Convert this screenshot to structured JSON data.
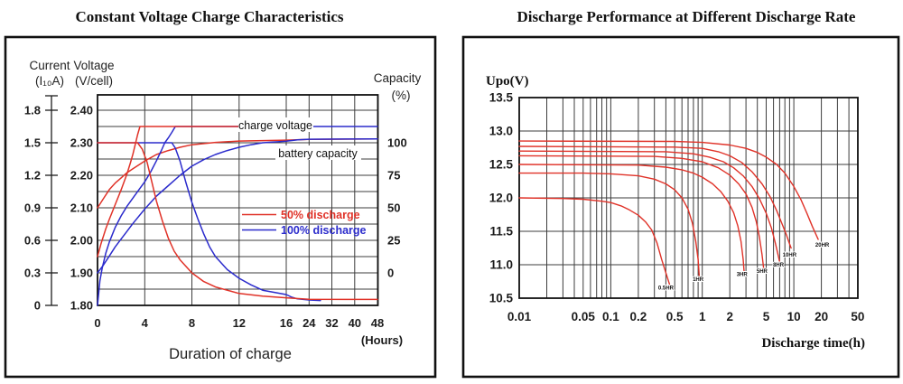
{
  "colors": {
    "red": "#e03228",
    "blue": "#2b2bcc",
    "grid": "#3c3c3c",
    "border": "#111111",
    "text": "#1c1c1c"
  },
  "chart_data": [
    {
      "id": "charge-characteristics",
      "type": "line",
      "title": "Constant Voltage Charge Characteristics",
      "x_axis": {
        "title": "Duration of charge",
        "unit": "(Hours)",
        "ticks": [
          "0",
          "4",
          "8",
          "12",
          "16",
          "24",
          "32",
          "40",
          "48"
        ],
        "tick_values": [
          0,
          4,
          8,
          12,
          16,
          24,
          32,
          40,
          48
        ],
        "note": "piecewise linear axis: 0-16 h wide spacing, 16-48 h compressed"
      },
      "y_axes": {
        "current": {
          "label_line1": "Current",
          "label_line2": "(I₁₀A)",
          "ticks": [
            "1.8",
            "1.5",
            "1.2",
            "0.9",
            "0.6",
            "0.3",
            "0"
          ],
          "tick_values": [
            1.8,
            1.5,
            1.2,
            0.9,
            0.6,
            0.3,
            0
          ]
        },
        "voltage": {
          "label_line1": "Voltage",
          "label_line2": "(V/cell)",
          "ticks": [
            "2.40",
            "2.30",
            "2.20",
            "2.10",
            "2.00",
            "1.90",
            "1.80"
          ],
          "tick_values": [
            2.4,
            2.3,
            2.2,
            2.1,
            2.0,
            1.9,
            1.8
          ]
        },
        "capacity": {
          "label_line1": "Capacity",
          "label_line2": "(%)",
          "ticks": [
            "100",
            "75",
            "50",
            "25",
            "0"
          ],
          "tick_values": [
            100,
            75,
            50,
            25,
            0
          ]
        }
      },
      "grid": {
        "x_lines": [
          0,
          4,
          8,
          12,
          16,
          24,
          32,
          40,
          48
        ],
        "y_min": 1.8,
        "y_max": 2.4,
        "y_step": 0.05
      },
      "annotations": {
        "charge_voltage": "charge voltage",
        "battery_capacity": "battery capacity"
      },
      "legend": [
        {
          "label": "50% discharge",
          "color": "#e03228"
        },
        {
          "label": "100% discharge",
          "color": "#2b2bcc"
        }
      ],
      "series": [
        {
          "name": "battery capacity (50% discharge)",
          "axis": "capacity",
          "color": "#e03228",
          "points": [
            [
              0,
              50
            ],
            [
              0.5,
              57
            ],
            [
              1,
              64
            ],
            [
              1.5,
              69
            ],
            [
              2,
              73
            ],
            [
              2.5,
              77
            ],
            [
              3,
              80
            ],
            [
              4,
              86
            ],
            [
              5,
              91
            ],
            [
              6,
              94
            ],
            [
              7,
              96.5
            ],
            [
              8,
              98.5
            ],
            [
              10,
              100.3
            ],
            [
              12,
              101.3
            ],
            [
              16,
              102
            ],
            [
              24,
              102.6
            ],
            [
              48,
              103
            ]
          ]
        },
        {
          "name": "battery capacity (100% discharge)",
          "axis": "capacity",
          "color": "#2b2bcc",
          "points": [
            [
              0,
              0
            ],
            [
              0.5,
              6
            ],
            [
              1,
              13
            ],
            [
              1.5,
              20
            ],
            [
              2,
              26
            ],
            [
              2.5,
              32
            ],
            [
              3,
              38
            ],
            [
              4,
              49
            ],
            [
              5,
              59
            ],
            [
              6,
              67
            ],
            [
              7,
              75
            ],
            [
              8,
              82
            ],
            [
              9,
              87
            ],
            [
              10,
              91
            ],
            [
              11,
              94
            ],
            [
              12,
              96.5
            ],
            [
              13,
              98.5
            ],
            [
              14,
              100
            ],
            [
              16,
              101.2
            ],
            [
              20,
              102.2
            ],
            [
              24,
              102.7
            ],
            [
              48,
              103
            ]
          ]
        },
        {
          "name": "charge current (100% discharge)",
          "axis": "current",
          "color": "#2b2bcc",
          "points": [
            [
              0,
              1.5
            ],
            [
              6.3,
              1.5
            ],
            [
              6.6,
              1.45
            ],
            [
              7,
              1.33
            ],
            [
              7.5,
              1.13
            ],
            [
              8,
              0.95
            ],
            [
              8.5,
              0.8
            ],
            [
              9,
              0.66
            ],
            [
              9.5,
              0.54
            ],
            [
              10,
              0.45
            ],
            [
              11,
              0.33
            ],
            [
              12,
              0.25
            ],
            [
              13,
              0.19
            ],
            [
              14,
              0.14
            ],
            [
              16,
              0.1
            ],
            [
              18,
              0.075
            ],
            [
              20,
              0.06
            ],
            [
              24,
              0.05
            ],
            [
              28,
              0.045
            ]
          ]
        },
        {
          "name": "charge voltage (100% discharge)",
          "axis": "voltage",
          "color": "#2b2bcc",
          "points": [
            [
              0,
              1.8
            ],
            [
              0.2,
              1.875
            ],
            [
              0.4,
              1.915
            ],
            [
              0.7,
              1.96
            ],
            [
              1,
              1.995
            ],
            [
              1.5,
              2.04
            ],
            [
              2,
              2.075
            ],
            [
              2.5,
              2.105
            ],
            [
              3,
              2.13
            ],
            [
              3.5,
              2.155
            ],
            [
              4,
              2.18
            ],
            [
              4.5,
              2.21
            ],
            [
              5,
              2.245
            ],
            [
              5.4,
              2.275
            ],
            [
              5.7,
              2.3
            ],
            [
              6,
              2.315
            ],
            [
              6.3,
              2.332
            ],
            [
              6.6,
              2.35
            ],
            [
              48,
              2.35
            ]
          ]
        },
        {
          "name": "charge current (50% discharge)",
          "axis": "current",
          "color": "#e03228",
          "points": [
            [
              0,
              1.5
            ],
            [
              3.4,
              1.5
            ],
            [
              3.8,
              1.44
            ],
            [
              4.2,
              1.32
            ],
            [
              4.6,
              1.14
            ],
            [
              5,
              0.96
            ],
            [
              5.5,
              0.78
            ],
            [
              6,
              0.62
            ],
            [
              6.5,
              0.5
            ],
            [
              7,
              0.42
            ],
            [
              8,
              0.3
            ],
            [
              9,
              0.22
            ],
            [
              10,
              0.17
            ],
            [
              12,
              0.11
            ],
            [
              14,
              0.085
            ],
            [
              16,
              0.07
            ],
            [
              24,
              0.056
            ],
            [
              48,
              0.055
            ]
          ]
        },
        {
          "name": "charge voltage (50% discharge)",
          "axis": "voltage",
          "color": "#e03228",
          "points": [
            [
              0,
              1.95
            ],
            [
              0.3,
              1.99
            ],
            [
              0.7,
              2.035
            ],
            [
              1,
              2.065
            ],
            [
              1.5,
              2.11
            ],
            [
              2,
              2.155
            ],
            [
              2.5,
              2.205
            ],
            [
              2.8,
              2.24
            ],
            [
              3,
              2.265
            ],
            [
              3.2,
              2.295
            ],
            [
              3.4,
              2.325
            ],
            [
              3.6,
              2.35
            ],
            [
              22,
              2.35
            ]
          ]
        }
      ]
    },
    {
      "id": "discharge-performance",
      "type": "line",
      "title": "Discharge Performance at Different Discharge Rate",
      "y_axis": {
        "label": "Upo(V)",
        "ticks": [
          "13.5",
          "13.0",
          "12.5",
          "12.0",
          "11.5",
          "11.0",
          "10.5"
        ],
        "tick_values": [
          13.5,
          13.0,
          12.5,
          12.0,
          11.5,
          11.0,
          10.5
        ]
      },
      "x_axis": {
        "label": "Discharge time(h)",
        "scale": "log",
        "ticks": [
          "0.01",
          "0.05",
          "0.1",
          "0.2",
          "0.5",
          "1",
          "2",
          "5",
          "10",
          "20",
          "50"
        ],
        "tick_values": [
          0.01,
          0.05,
          0.1,
          0.2,
          0.5,
          1,
          2,
          5,
          10,
          20,
          50
        ]
      },
      "grid": {
        "y_min": 10.5,
        "y_max": 13.5,
        "y_step": 0.5,
        "x_min": 0.01,
        "x_max": 50,
        "log_minor": true
      },
      "series": [
        {
          "name": "0.5HR",
          "color": "#e03228",
          "label_at": [
            0.4,
            10.63
          ],
          "points": [
            [
              0.01,
              12.0
            ],
            [
              0.03,
              11.99
            ],
            [
              0.05,
              11.98
            ],
            [
              0.08,
              11.95
            ],
            [
              0.1,
              11.93
            ],
            [
              0.13,
              11.88
            ],
            [
              0.16,
              11.82
            ],
            [
              0.2,
              11.74
            ],
            [
              0.24,
              11.64
            ],
            [
              0.28,
              11.52
            ],
            [
              0.32,
              11.33
            ],
            [
              0.36,
              11.08
            ],
            [
              0.4,
              10.88
            ],
            [
              0.44,
              10.7
            ]
          ]
        },
        {
          "name": "1HR",
          "color": "#e03228",
          "label_at": [
            0.9,
            10.76
          ],
          "points": [
            [
              0.01,
              12.37
            ],
            [
              0.05,
              12.37
            ],
            [
              0.1,
              12.36
            ],
            [
              0.2,
              12.33
            ],
            [
              0.3,
              12.28
            ],
            [
              0.4,
              12.21
            ],
            [
              0.5,
              12.12
            ],
            [
              0.6,
              12.0
            ],
            [
              0.7,
              11.83
            ],
            [
              0.78,
              11.62
            ],
            [
              0.85,
              11.35
            ],
            [
              0.9,
              11.08
            ],
            [
              0.93,
              10.8
            ]
          ]
        },
        {
          "name": "3HR",
          "color": "#e03228",
          "label_at": [
            2.72,
            10.83
          ],
          "points": [
            [
              0.01,
              12.5
            ],
            [
              0.2,
              12.49
            ],
            [
              0.4,
              12.46
            ],
            [
              0.6,
              12.42
            ],
            [
              0.8,
              12.37
            ],
            [
              1,
              12.31
            ],
            [
              1.3,
              12.21
            ],
            [
              1.6,
              12.09
            ],
            [
              1.9,
              11.95
            ],
            [
              2.2,
              11.78
            ],
            [
              2.45,
              11.58
            ],
            [
              2.65,
              11.35
            ],
            [
              2.8,
              11.08
            ],
            [
              2.88,
              10.85
            ]
          ]
        },
        {
          "name": "5HR",
          "color": "#e03228",
          "label_at": [
            4.5,
            10.88
          ],
          "points": [
            [
              0.01,
              12.63
            ],
            [
              0.3,
              12.62
            ],
            [
              0.6,
              12.59
            ],
            [
              1,
              12.54
            ],
            [
              1.5,
              12.45
            ],
            [
              2,
              12.34
            ],
            [
              2.5,
              12.21
            ],
            [
              3,
              12.06
            ],
            [
              3.5,
              11.86
            ],
            [
              3.9,
              11.64
            ],
            [
              4.2,
              11.42
            ],
            [
              4.5,
              11.15
            ],
            [
              4.7,
              10.93
            ]
          ]
        },
        {
          "name": "8HR",
          "color": "#e03228",
          "label_at": [
            6.8,
            10.97
          ],
          "points": [
            [
              0.01,
              12.7
            ],
            [
              0.4,
              12.69
            ],
            [
              0.8,
              12.66
            ],
            [
              1.2,
              12.61
            ],
            [
              1.7,
              12.54
            ],
            [
              2.2,
              12.45
            ],
            [
              2.8,
              12.33
            ],
            [
              3.5,
              12.17
            ],
            [
              4.2,
              11.99
            ],
            [
              5,
              11.77
            ],
            [
              5.7,
              11.55
            ],
            [
              6.3,
              11.32
            ],
            [
              6.8,
              11.12
            ],
            [
              7.05,
              11.02
            ]
          ]
        },
        {
          "name": "10HR",
          "color": "#e03228",
          "label_at": [
            9.0,
            11.12
          ],
          "points": [
            [
              0.01,
              12.77
            ],
            [
              0.5,
              12.76
            ],
            [
              1,
              12.74
            ],
            [
              1.5,
              12.69
            ],
            [
              2,
              12.63
            ],
            [
              2.7,
              12.53
            ],
            [
              3.5,
              12.39
            ],
            [
              4.5,
              12.21
            ],
            [
              5.5,
              12.02
            ],
            [
              6.5,
              11.81
            ],
            [
              7.5,
              11.6
            ],
            [
              8.3,
              11.45
            ],
            [
              8.9,
              11.33
            ],
            [
              9.35,
              11.25
            ]
          ]
        },
        {
          "name": "20HR",
          "color": "#e03228",
          "label_at": [
            20.5,
            11.27
          ],
          "points": [
            [
              0.01,
              12.85
            ],
            [
              0.5,
              12.845
            ],
            [
              1,
              12.83
            ],
            [
              2,
              12.79
            ],
            [
              3,
              12.74
            ],
            [
              4,
              12.68
            ],
            [
              5,
              12.61
            ],
            [
              6.5,
              12.5
            ],
            [
              8,
              12.37
            ],
            [
              10,
              12.17
            ],
            [
              12,
              11.97
            ],
            [
              14,
              11.76
            ],
            [
              16,
              11.57
            ],
            [
              17.5,
              11.45
            ],
            [
              18.5,
              11.38
            ]
          ]
        }
      ]
    }
  ]
}
